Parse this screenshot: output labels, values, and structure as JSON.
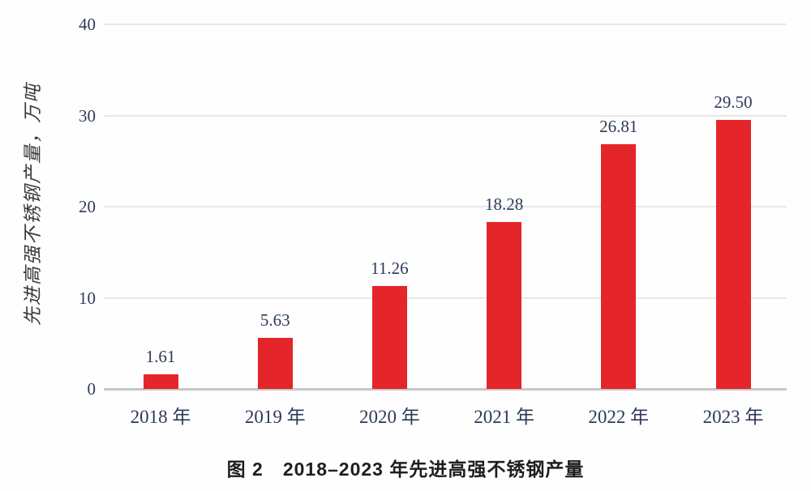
{
  "figure": {
    "caption": "图 2　2018–2023 年先进高强不锈钢产量"
  },
  "chart_data": {
    "type": "bar",
    "title": "",
    "categories": [
      "2018 年",
      "2019 年",
      "2020 年",
      "2021 年",
      "2022 年",
      "2023 年"
    ],
    "values": [
      1.61,
      5.63,
      11.26,
      18.28,
      26.81,
      29.5
    ],
    "value_labels": [
      "1.61",
      "5.63",
      "11.26",
      "18.28",
      "26.81",
      "29.50"
    ],
    "xlabel": "",
    "ylabel": "先进高强不锈钢产量，万吨",
    "ylim": [
      0,
      40
    ],
    "yticks": [
      0,
      10,
      20,
      30,
      40
    ],
    "grid": "horizontal",
    "legend": "none",
    "bar_color": "#e4252a",
    "label_color": "#2c3a58",
    "gridline_color": "#e7e7e7",
    "baseline_color": "#c6c6c6"
  }
}
